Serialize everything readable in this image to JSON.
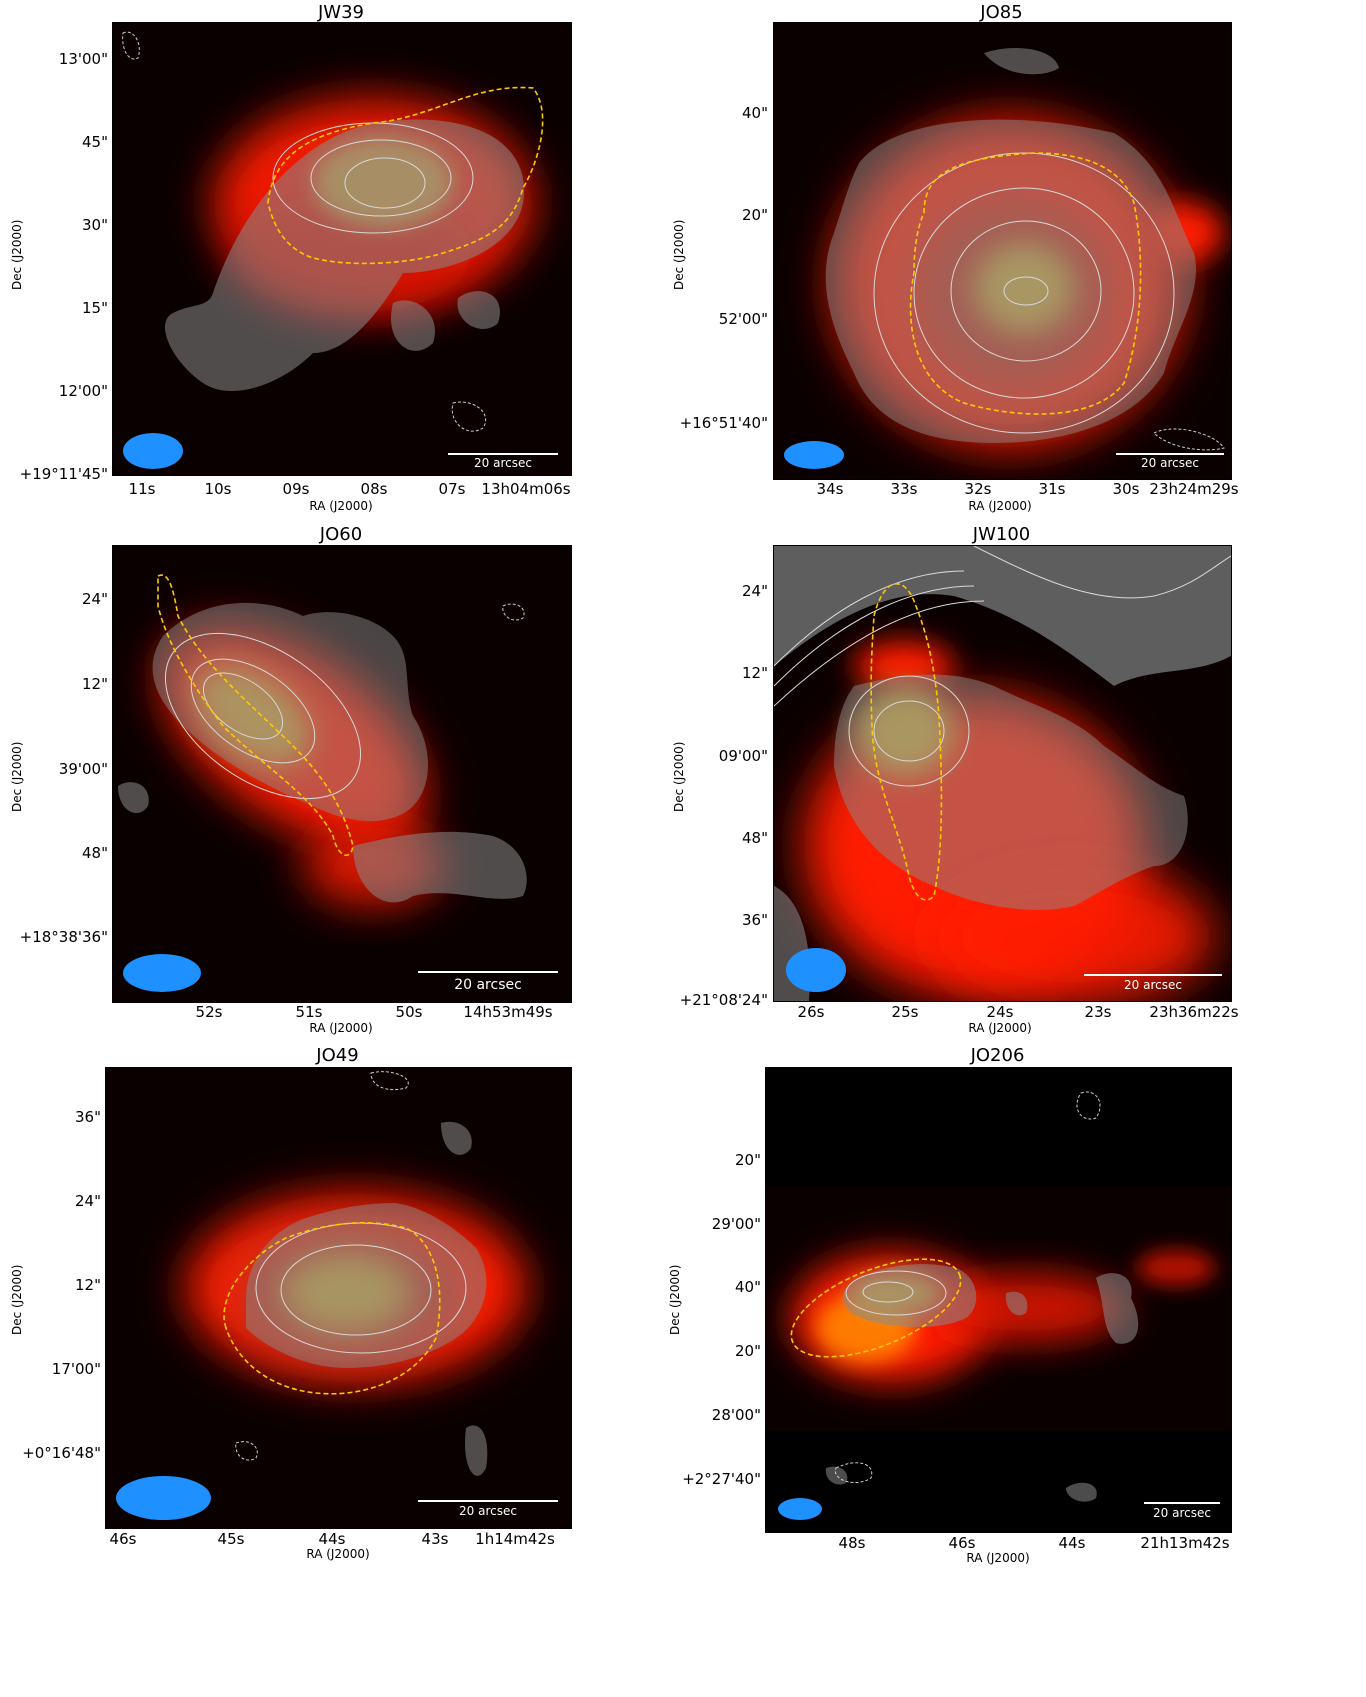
{
  "panels": [
    {
      "title": "JW39",
      "yticks": [
        "13'00\"",
        "45\"",
        "30\"",
        "15\"",
        "12'00\"",
        "+19°11'45\""
      ],
      "xticks": [
        "11s",
        "10s",
        "09s",
        "08s",
        "07s",
        "13h04m06s"
      ],
      "xlabel": "RA (J2000)",
      "ylabel": "Dec (J2000)",
      "scalebar": "20 arcsec"
    },
    {
      "title": "JO85",
      "yticks": [
        "40\"",
        "20\"",
        "52'00\"",
        "+16°51'40\""
      ],
      "xticks": [
        "34s",
        "33s",
        "32s",
        "31s",
        "30s",
        "23h24m29s"
      ],
      "xlabel": "RA (J2000)",
      "ylabel": "Dec (J2000)",
      "scalebar": "20 arcsec"
    },
    {
      "title": "JO60",
      "yticks": [
        "24\"",
        "12\"",
        "39'00\"",
        "48\"",
        "+18°38'36\""
      ],
      "xticks": [
        "52s",
        "51s",
        "50s",
        "14h53m49s"
      ],
      "xlabel": "RA (J2000)",
      "ylabel": "Dec (J2000)",
      "scalebar": "20 arcsec"
    },
    {
      "title": "JW100",
      "yticks": [
        "24\"",
        "12\"",
        "09'00\"",
        "48\"",
        "36\"",
        "+21°08'24\""
      ],
      "xticks": [
        "26s",
        "25s",
        "24s",
        "23s",
        "23h36m22s"
      ],
      "xlabel": "RA (J2000)",
      "ylabel": "Dec (J2000)",
      "scalebar": "20 arcsec"
    },
    {
      "title": "JO49",
      "yticks": [
        "36\"",
        "24\"",
        "12\"",
        "17'00\"",
        "+0°16'48\""
      ],
      "xticks": [
        "46s",
        "45s",
        "44s",
        "43s",
        "1h14m42s"
      ],
      "xlabel": "RA (J2000)",
      "ylabel": "Dec (J2000)",
      "scalebar": "20 arcsec"
    },
    {
      "title": "JO206",
      "yticks": [
        "20\"",
        "29'00\"",
        "40\"",
        "20\"",
        "28'00\"",
        "+2°27'40\""
      ],
      "xticks": [
        "48s",
        "46s",
        "44s",
        "21h13m42s"
      ],
      "xlabel": "RA (J2000)",
      "ylabel": "Dec (J2000)",
      "scalebar": "20 arcsec"
    }
  ],
  "colors": {
    "background": "#0b0000",
    "emission_red": "#ff1a00",
    "emission_core": "#b8a23a",
    "contour_fill": "#8a8a8a",
    "contour_line": "#d8d8d8",
    "optical_outline": "#ffd000",
    "beam": "#1e90ff",
    "scalebar": "#ffffff"
  }
}
